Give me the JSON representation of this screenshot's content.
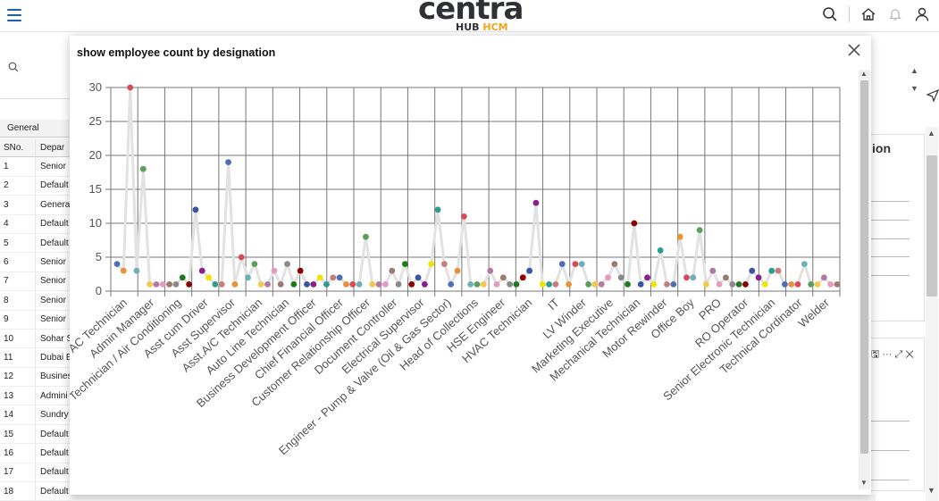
{
  "header": {
    "logo_text": "centra",
    "logo_sub_a": "HUB ",
    "logo_sub_b": "HCM",
    "icons": [
      "menu-icon",
      "search-icon",
      "home-icon",
      "bell-icon",
      "user-icon"
    ]
  },
  "background": {
    "tab_label": "General",
    "table_headers": [
      "SNo.",
      "Depar"
    ],
    "rows": [
      [
        "1",
        "Senior"
      ],
      [
        "2",
        "Default"
      ],
      [
        "3",
        "Genera"
      ],
      [
        "4",
        "Default"
      ],
      [
        "5",
        "Default"
      ],
      [
        "6",
        "Senior"
      ],
      [
        "7",
        "Senior"
      ],
      [
        "8",
        "Senior"
      ],
      [
        "9",
        "Senior"
      ],
      [
        "10",
        "Sohar S"
      ],
      [
        "11",
        "Dubai E"
      ],
      [
        "12",
        "Busines"
      ],
      [
        "13",
        "Admini"
      ],
      [
        "14",
        "Sundry"
      ],
      [
        "15",
        "Default"
      ],
      [
        "16",
        "Default"
      ],
      [
        "17",
        "Default"
      ],
      [
        "18",
        "Default"
      ]
    ],
    "right_panel_title": "ion"
  },
  "modal": {
    "title": "show employee count by designation",
    "close_icon": "close-icon"
  },
  "chart_data": {
    "type": "line",
    "title": "show employee count by designation",
    "xlabel": "",
    "ylabel": "",
    "ylim": [
      0,
      30
    ],
    "yticks": [
      0,
      5,
      10,
      15,
      20,
      25,
      30
    ],
    "grid": true,
    "legend": "none",
    "tick_labels": [
      "AC Technician",
      "Admin Manager",
      "Technician / Air Conditioning",
      "Asst cum Driver",
      "Asst Supervisor",
      "Asst.A/C Technician",
      "Auto Line Technician",
      "Business Development Officer",
      "Chief Financial Officer",
      "Customer Relationship Officer",
      "Document Controller",
      "Electrical Supervisor",
      "Engineer - Pump & Valve (Oil & Gas Sector)",
      "Head of Collections",
      "HSE Engineer",
      "HVAC Technician",
      "IT",
      "LV Winder",
      "Marketing Executive",
      "Mechanical Technician",
      "Motor Rewinder",
      "Office Boy",
      "PRO",
      "RO Operator",
      "Senior Electronic Technician",
      "Technical Cordinator",
      "Welder"
    ],
    "values": [
      4,
      3,
      30,
      3,
      18,
      1,
      1,
      1,
      1,
      1,
      2,
      1,
      12,
      3,
      2,
      1,
      1,
      19,
      1,
      5,
      2,
      4,
      1,
      1,
      3,
      1,
      4,
      1,
      3,
      1,
      1,
      2,
      1,
      2,
      2,
      1,
      1,
      1,
      8,
      1,
      1,
      1,
      3,
      1,
      4,
      1,
      2,
      1,
      4,
      12,
      4,
      1,
      3,
      11,
      1,
      1,
      1,
      3,
      1,
      2,
      1,
      1,
      2,
      3,
      13,
      1,
      1,
      1,
      4,
      1,
      4,
      4,
      1,
      1,
      1,
      2,
      4,
      2,
      1,
      10,
      1,
      2,
      1,
      6,
      1,
      1,
      8,
      2,
      2,
      9,
      1,
      3,
      1,
      2,
      1,
      1,
      1,
      3,
      2,
      1,
      3,
      3,
      1,
      1,
      1,
      4,
      1,
      1,
      2,
      1,
      1
    ],
    "colors": [
      "#4f6fb3",
      "#e8923a",
      "#d94b5a",
      "#6fb0b8",
      "#5aa05a",
      "#f2c94c",
      "#b07aa1",
      "#e79ac1",
      "#9c7b6f",
      "#8a8a8a",
      "#1f7a1f",
      "#8b0000",
      "#3a55a4",
      "#8b1f8b",
      "#f0e400",
      "#2a9d8f",
      "#c77d7d"
    ],
    "line_color": "#e2e2e2"
  }
}
